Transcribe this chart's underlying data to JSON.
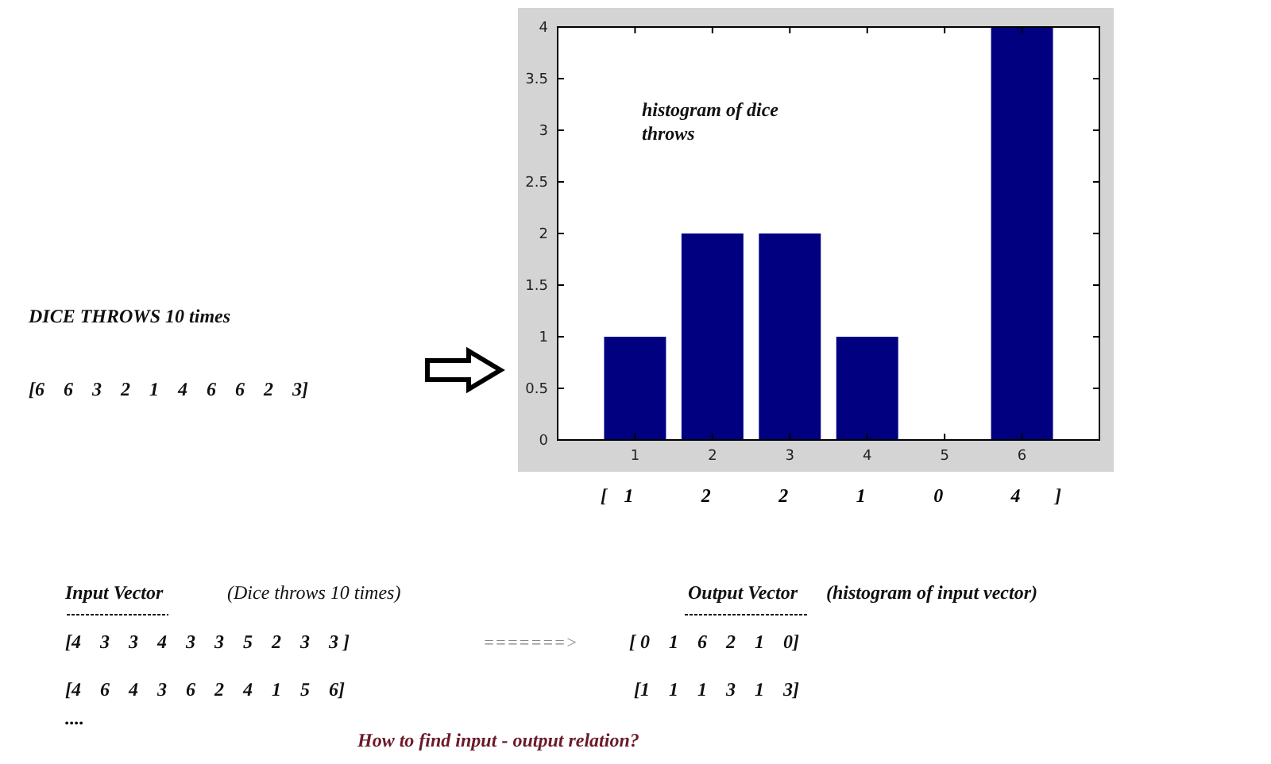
{
  "chart_data": {
    "type": "bar",
    "categories": [
      "1",
      "2",
      "3",
      "4",
      "5",
      "6"
    ],
    "values": [
      1,
      2,
      2,
      1,
      0,
      4
    ],
    "color": "#000080",
    "ylim": [
      0,
      4
    ],
    "yticks": [
      0,
      0.5,
      1,
      1.5,
      2,
      2.5,
      3,
      3.5,
      4
    ],
    "data_labels": true,
    "annotations": [
      "histogram of dice throws",
      "DICE THROWS 10 times",
      "[6    6    3    2    1    4    6    6    2    3]",
      "Input Vector",
      "(Dice throws 10 times)",
      "[4    3    3    4    3    3    5    2    3    3 ]",
      "[4    6    4    3    6    2    4    1    5    6]",
      "....",
      "=======>",
      "Output Vector",
      "(histogram of input vector)",
      "[ 0    1    6    2    1    0]",
      "[1    1    1    3    1    3]",
      "How to find input - output relation?",
      "[",
      "]"
    ]
  }
}
